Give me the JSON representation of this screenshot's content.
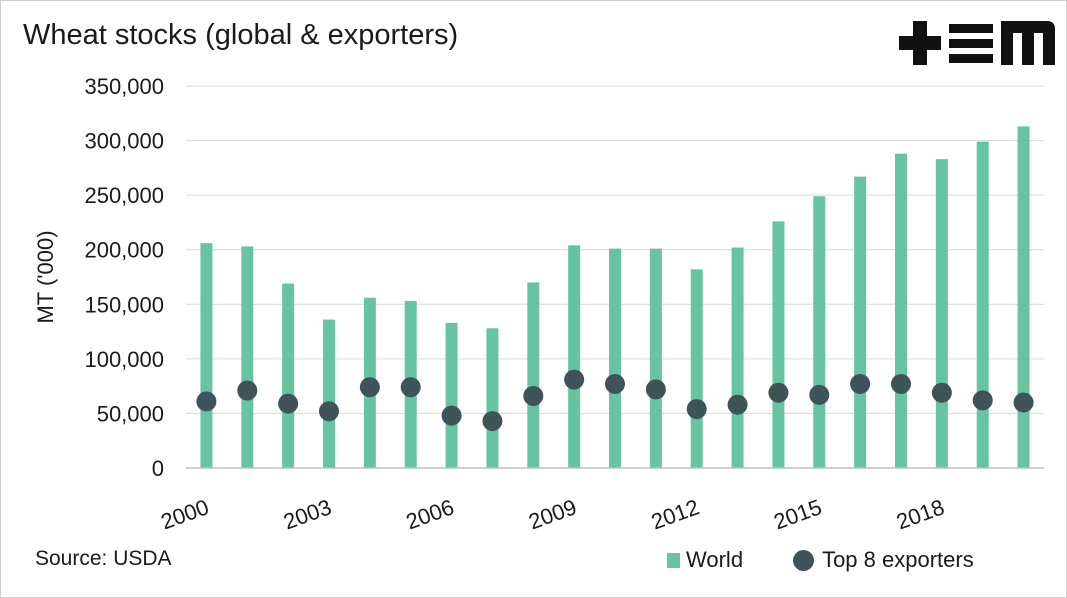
{
  "chart_data": {
    "type": "bar",
    "title": "Wheat stocks (global & exporters)",
    "ylabel": "MT ('000)",
    "xlabel": "",
    "ylim": [
      0,
      350000
    ],
    "yticks": [
      0,
      50000,
      100000,
      150000,
      200000,
      250000,
      300000,
      350000
    ],
    "ytick_labels": [
      "0",
      "50,000",
      "100,000",
      "150,000",
      "200,000",
      "250,000",
      "300,000",
      "350,000"
    ],
    "categories": [
      "2000",
      "2001",
      "2002",
      "2003",
      "2004",
      "2005",
      "2006",
      "2007",
      "2008",
      "2009",
      "2010",
      "2011",
      "2012",
      "2013",
      "2014",
      "2015",
      "2016",
      "2017",
      "2018",
      "2019",
      "2020"
    ],
    "xtick_labels": [
      "2000",
      "2003",
      "2006",
      "2009",
      "2012",
      "2015",
      "2018"
    ],
    "grid": true,
    "legend_position": "bottom-right",
    "series": [
      {
        "name": "World",
        "mark": "bar",
        "color": "#66c4a3",
        "values": [
          206000,
          203000,
          169000,
          136000,
          156000,
          153000,
          133000,
          128000,
          170000,
          204000,
          201000,
          201000,
          182000,
          202000,
          226000,
          249000,
          267000,
          288000,
          283000,
          299000,
          313000
        ]
      },
      {
        "name": "Top 8 exporters",
        "mark": "dot",
        "color": "#3f5459",
        "values": [
          61000,
          71000,
          59000,
          52000,
          74000,
          74000,
          48000,
          43000,
          66000,
          81000,
          77000,
          72000,
          54000,
          58000,
          69000,
          67000,
          77000,
          77000,
          69000,
          62000,
          60000
        ]
      }
    ]
  },
  "source": "Source: USDA",
  "logo": {
    "name": "tem-logo",
    "color": "#111111"
  }
}
